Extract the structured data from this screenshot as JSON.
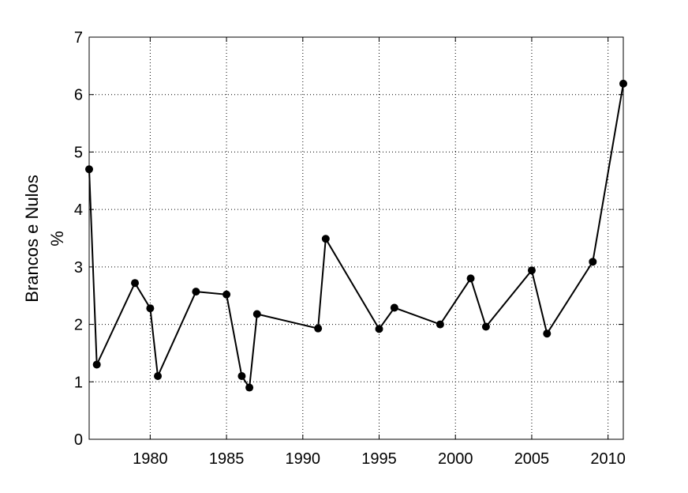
{
  "chart_data": {
    "type": "line",
    "ylabel_lines": [
      "Brancos e Nulos",
      "%"
    ],
    "xlabel": "",
    "title": "",
    "xlim": [
      1976,
      2011
    ],
    "ylim": [
      0,
      7
    ],
    "xticks": [
      1980,
      1985,
      1990,
      1995,
      2000,
      2005,
      2010
    ],
    "yticks": [
      0,
      1,
      2,
      3,
      4,
      5,
      6,
      7
    ],
    "grid": true,
    "series": [
      {
        "x": [
          1976.0,
          1976.5,
          1979.0,
          1980.0,
          1980.5,
          1983.0,
          1985.0,
          1986.0,
          1986.5,
          1987.0,
          1991.0,
          1991.5,
          1995.0,
          1996.0,
          1999.0,
          2001.0,
          2002.0,
          2005.0,
          2006.0,
          2009.0,
          2011.0
        ],
        "y": [
          4.7,
          1.3,
          2.72,
          2.28,
          1.1,
          2.57,
          2.52,
          1.1,
          0.9,
          2.18,
          1.93,
          3.49,
          1.92,
          2.29,
          2.0,
          2.8,
          1.96,
          2.94,
          1.84,
          3.09,
          6.19
        ]
      }
    ]
  }
}
